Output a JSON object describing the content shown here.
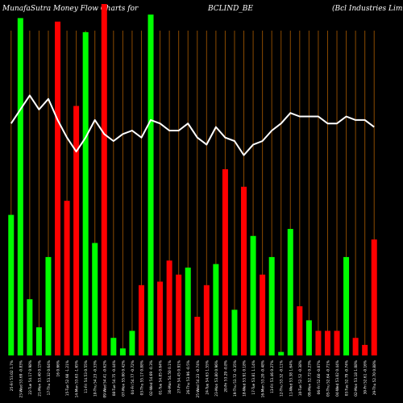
{
  "header": {
    "left": "MunafaSutra  Money Flow  Charts for",
    "symbol": "BCLIND_BE",
    "company": "(Bcl Industries Limit"
  },
  "chart_data": {
    "type": "bar",
    "title": "MunafaSutra  Money Flow  Charts for BCLIND_BE",
    "ylim": [
      0,
      100
    ],
    "grid": true,
    "bars": [
      {
        "value": 40,
        "color": "#00ff00",
        "label": "25-Fri 53.02 1.7%"
      },
      {
        "value": 96,
        "color": "#00ff00",
        "label": "23-Wed 53.69 -0.83%"
      },
      {
        "value": 16,
        "color": "#00ff00",
        "label": "22-Tue 54.17 0.98%"
      },
      {
        "value": 8,
        "color": "#00ff00",
        "label": "21-Mon 53.40 0.15%"
      },
      {
        "value": 28,
        "color": "#00ff00",
        "label": "17-Thu 53.32 0.64%"
      },
      {
        "value": 95,
        "color": "#ff0000",
        "label": "16 0.66%"
      },
      {
        "value": 44,
        "color": "#ff0000",
        "label": "15-Tue 52.98 -1.21%"
      },
      {
        "value": 71,
        "color": "#ff0000",
        "label": "14-Mon 53.63 -1.65%"
      },
      {
        "value": 92,
        "color": "#00ff00",
        "label": "11-Fri 54.53 0.55%"
      },
      {
        "value": 32,
        "color": "#00ff00",
        "label": "10-Thu 54.23 -0.33%"
      },
      {
        "value": 100,
        "color": "#ff0000",
        "label": "09-Wed 54.41 -0.62%"
      },
      {
        "value": 5,
        "color": "#00ff00",
        "label": "08-Tue 54.75 -0.44%"
      },
      {
        "value": 2,
        "color": "#00ff00",
        "label": "07-Mon 55.00 0.42%"
      },
      {
        "value": 7,
        "color": "#00ff00",
        "label": "04-Fri 54.77 -0.72%"
      },
      {
        "value": 20,
        "color": "#ff0000",
        "label": "03-Thu 55.17 0.88%"
      },
      {
        "value": 97,
        "color": "#00ff00",
        "label": "02-Wed 54.69 -0.3%"
      },
      {
        "value": 21,
        "color": "#ff0000",
        "label": "01-Tue 54.85 0.64%"
      },
      {
        "value": 27,
        "color": "#ff0000",
        "label": "30-Mon 54.50 0.1%"
      },
      {
        "value": 23,
        "color": "#ff0000",
        "label": "27-Fri 54.45 0.91%"
      },
      {
        "value": 25,
        "color": "#00ff00",
        "label": "26-Thu 53.96 -0.5%"
      },
      {
        "value": 11,
        "color": "#ff0000",
        "label": "25-Wed 54.23 -0.74%"
      },
      {
        "value": 20,
        "color": "#ff0000",
        "label": "24-Tue 54.63 1.55%"
      },
      {
        "value": 26,
        "color": "#00ff00",
        "label": "23-Mon 53.80 0.96%"
      },
      {
        "value": 53,
        "color": "#ff0000",
        "label": "20-Fri 53.29 -0.8%"
      },
      {
        "value": 13,
        "color": "#00ff00",
        "label": "19-Thu 53.72 -0.35%"
      },
      {
        "value": 48,
        "color": "#ff0000",
        "label": "18-Wed 53.91 0.18%"
      },
      {
        "value": 34,
        "color": "#00ff00",
        "label": "17-Tue 53.81 1.14%"
      },
      {
        "value": 23,
        "color": "#ff0000",
        "label": "16-Mon 53.20 -0.48%"
      },
      {
        "value": 28,
        "color": "#00ff00",
        "label": "13-Fri 53.46 0.27%"
      },
      {
        "value": 1,
        "color": "#00ff00",
        "label": "12-Thu 53.32 -0.11%"
      },
      {
        "value": 36,
        "color": "#00ff00",
        "label": "11-Wed 53.38 1.64%"
      },
      {
        "value": 14,
        "color": "#ff0000",
        "label": "10-Tue 52.52 -0.38%"
      },
      {
        "value": 10,
        "color": "#00ff00",
        "label": "09-Mon 52.72 0.23%"
      },
      {
        "value": 7,
        "color": "#ff0000",
        "label": "06-Fri 52.60 -0.07%"
      },
      {
        "value": 7,
        "color": "#ff0000",
        "label": "05-Thu 52.64 -0.71%"
      },
      {
        "value": 7,
        "color": "#ff0000",
        "label": "04-Wed 53.02 0.44%"
      },
      {
        "value": 28,
        "color": "#00ff00",
        "label": "03-Tue 52.79 -0.74%"
      },
      {
        "value": 5,
        "color": "#ff0000",
        "label": "02-Mon 53.18 1.08%"
      },
      {
        "value": 3,
        "color": "#ff0000",
        "label": "30-Fri 52.61 -0.16%"
      },
      {
        "value": 33,
        "color": "#ff0000",
        "label": "29-Thu 52.70 0.88%"
      }
    ],
    "line": {
      "color": "#ffffff",
      "values": [
        66,
        70,
        74,
        70,
        73,
        67,
        62,
        58,
        62,
        67,
        63,
        61,
        63,
        64,
        62,
        67,
        66,
        64,
        64,
        66,
        62,
        60,
        65,
        62,
        61,
        57,
        60,
        61,
        64,
        66,
        69,
        68,
        68,
        68,
        66,
        66,
        68,
        67,
        67,
        65
      ]
    }
  }
}
